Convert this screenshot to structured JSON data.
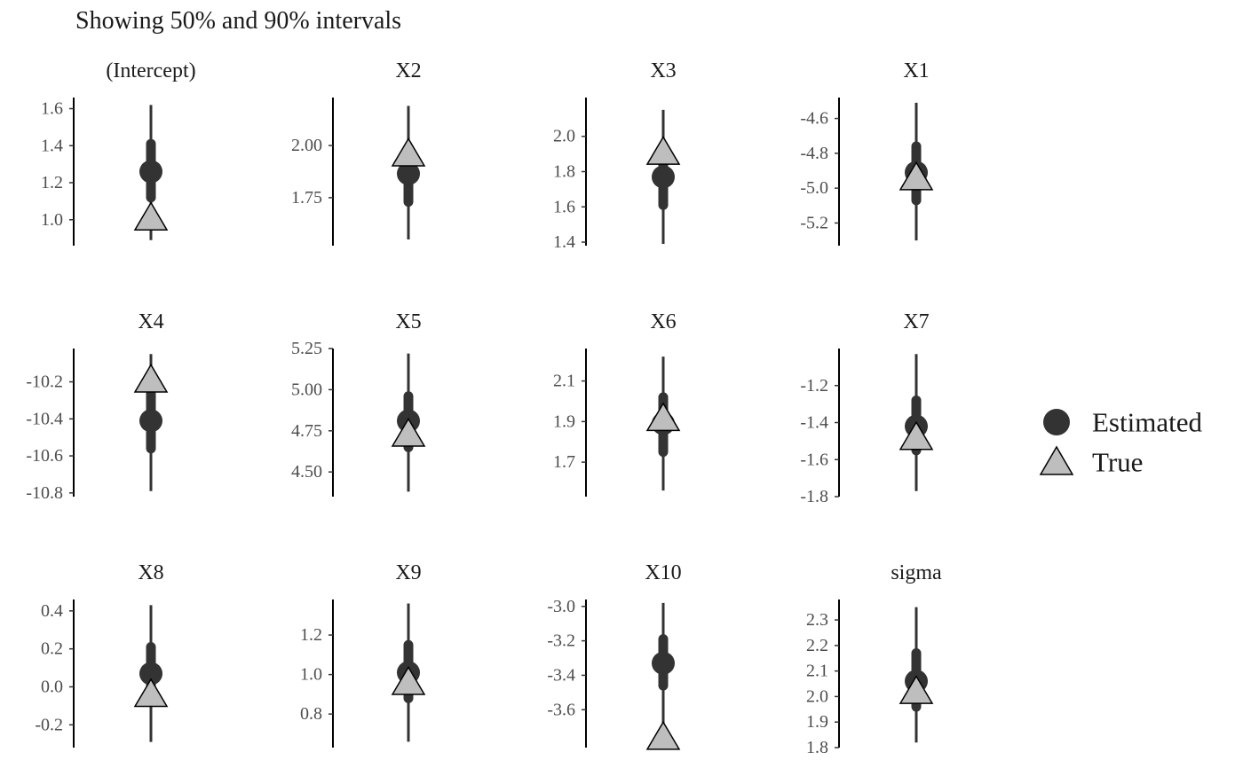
{
  "subtitle": "Showing 50% and 90% intervals",
  "chart_data": {
    "type": "interval",
    "colors": {
      "estimated": "#333333",
      "true_fill": "#bebebe",
      "true_stroke": "#000000"
    },
    "legend": {
      "position": "right",
      "items": [
        {
          "label": "Estimated",
          "shape": "circle"
        },
        {
          "label": "True",
          "shape": "triangle"
        }
      ]
    },
    "panels": [
      {
        "title": "(Intercept)",
        "ylim": [
          0.86,
          1.66
        ],
        "ticks": [
          "1.6",
          "1.4",
          "1.2",
          "1.0"
        ],
        "tick_values": [
          1.6,
          1.4,
          1.2,
          1.0
        ],
        "estimate": 1.26,
        "ci50": [
          1.12,
          1.41
        ],
        "ci90": [
          0.89,
          1.62
        ],
        "true": 1.01
      },
      {
        "title": "X2",
        "ylim": [
          1.52,
          2.23
        ],
        "ticks": [
          "2.00",
          "1.75"
        ],
        "tick_values": [
          2.0,
          1.75
        ],
        "estimate": 1.865,
        "ci50": [
          1.73,
          1.99
        ],
        "ci90": [
          1.55,
          2.19
        ],
        "true": 1.96
      },
      {
        "title": "X3",
        "ylim": [
          1.38,
          2.22
        ],
        "ticks": [
          "2.0",
          "1.8",
          "1.6",
          "1.4"
        ],
        "tick_values": [
          2.0,
          1.8,
          1.6,
          1.4
        ],
        "estimate": 1.77,
        "ci50": [
          1.61,
          1.91
        ],
        "ci90": [
          1.39,
          2.15
        ],
        "true": 1.91
      },
      {
        "title": "X1",
        "ylim": [
          -5.33,
          -4.48
        ],
        "ticks": [
          "-4.6",
          "-4.8",
          "-5.0",
          "-5.2"
        ],
        "tick_values": [
          -4.6,
          -4.8,
          -5.0,
          -5.2
        ],
        "estimate": -4.91,
        "ci50": [
          -5.07,
          -4.76
        ],
        "ci90": [
          -5.3,
          -4.51
        ],
        "true": -4.94
      },
      {
        "title": "X4",
        "ylim": [
          -10.82,
          -10.02
        ],
        "ticks": [
          "-10.2",
          "-10.4",
          "-10.6",
          "-10.8"
        ],
        "tick_values": [
          -10.2,
          -10.4,
          -10.6,
          -10.8
        ],
        "estimate": -10.41,
        "ci50": [
          -10.56,
          -10.26
        ],
        "ci90": [
          -10.79,
          -10.05
        ],
        "true": -10.19
      },
      {
        "title": "X5",
        "ylim": [
          4.35,
          5.25
        ],
        "ticks": [
          "5.25",
          "5.00",
          "4.75",
          "4.50"
        ],
        "tick_values": [
          5.25,
          5.0,
          4.75,
          4.5
        ],
        "estimate": 4.81,
        "ci50": [
          4.65,
          4.96
        ],
        "ci90": [
          4.38,
          5.22
        ],
        "true": 4.73
      },
      {
        "title": "X6",
        "ylim": [
          1.53,
          2.26
        ],
        "ticks": [
          "2.1",
          "1.9",
          "1.7"
        ],
        "tick_values": [
          2.1,
          1.9,
          1.7
        ],
        "estimate": 1.89,
        "ci50": [
          1.75,
          2.02
        ],
        "ci90": [
          1.56,
          2.22
        ],
        "true": 1.915
      },
      {
        "title": "X7",
        "ylim": [
          -1.8,
          -1.0
        ],
        "ticks": [
          "-1.2",
          "-1.4",
          "-1.6",
          "-1.8"
        ],
        "tick_values": [
          -1.2,
          -1.4,
          -1.6,
          -1.8
        ],
        "estimate": -1.42,
        "ci50": [
          -1.55,
          -1.28
        ],
        "ci90": [
          -1.77,
          -1.03
        ],
        "true": -1.48
      },
      {
        "title": "X8",
        "ylim": [
          -0.32,
          0.46
        ],
        "ticks": [
          "0.4",
          "0.2",
          "0.0",
          "-0.2"
        ],
        "tick_values": [
          0.4,
          0.2,
          0.0,
          -0.2
        ],
        "estimate": 0.07,
        "ci50": [
          -0.06,
          0.21
        ],
        "ci90": [
          -0.29,
          0.43
        ],
        "true": -0.04
      },
      {
        "title": "X9",
        "ylim": [
          0.63,
          1.38
        ],
        "ticks": [
          "1.2",
          "1.0",
          "0.8"
        ],
        "tick_values": [
          1.2,
          1.0,
          0.8
        ],
        "estimate": 1.01,
        "ci50": [
          0.88,
          1.15
        ],
        "ci90": [
          0.66,
          1.36
        ],
        "true": 0.96
      },
      {
        "title": "X10",
        "ylim": [
          -3.82,
          -2.96
        ],
        "ticks": [
          "-3.0",
          "-3.2",
          "-3.4",
          "-3.6"
        ],
        "tick_values": [
          -3.0,
          -3.2,
          -3.4,
          -3.6
        ],
        "estimate": -3.33,
        "ci50": [
          -3.46,
          -3.19
        ],
        "ci90": [
          -3.76,
          -2.98
        ],
        "true": -3.76
      },
      {
        "title": "sigma",
        "ylim": [
          1.8,
          2.38
        ],
        "ticks": [
          "2.3",
          "2.2",
          "2.1",
          "2.0",
          "1.9",
          "1.8"
        ],
        "tick_values": [
          2.3,
          2.2,
          2.1,
          2.0,
          1.9,
          1.8
        ],
        "estimate": 2.06,
        "ci50": [
          1.96,
          2.17
        ],
        "ci90": [
          1.82,
          2.35
        ],
        "true": 2.02
      }
    ]
  }
}
